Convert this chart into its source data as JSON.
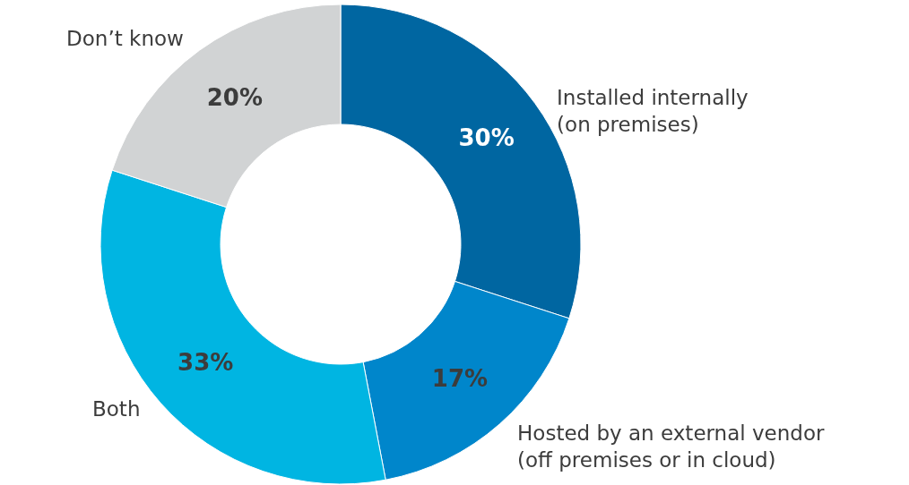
{
  "chart_data": {
    "type": "donut",
    "categories": [
      "Installed internally\n(on premises)",
      "Hosted by an external vendor\n(off premises or in cloud)",
      "Both",
      "Don’t know"
    ],
    "values": [
      30,
      17,
      33,
      20
    ],
    "colors": [
      "#0066a1",
      "#0086cb",
      "#00b5e2",
      "#d1d3d4"
    ],
    "value_labels": [
      "30%",
      "17%",
      "33%",
      "20%"
    ]
  }
}
